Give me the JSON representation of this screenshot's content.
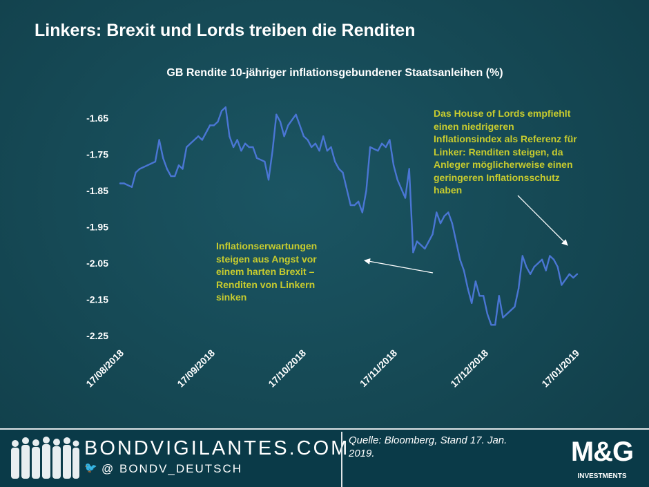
{
  "page": {
    "title": "Linkers: Brexit und Lords treiben die Renditen"
  },
  "chart_data": {
    "type": "line",
    "title": "GB Rendite 10-jähriger inflationsgebundener Staatsanleihen (%)",
    "xlabel": "",
    "ylabel": "",
    "ylim": [
      -2.25,
      -1.65
    ],
    "yticks": [
      "-1.65",
      "-1.75",
      "-1.85",
      "-1.95",
      "-2.05",
      "-2.15",
      "-2.25"
    ],
    "xticks": [
      "17/08/2018",
      "17/09/2018",
      "17/10/2018",
      "17/11/2018",
      "17/12/2018",
      "17/01/2019"
    ],
    "xlim": [
      0,
      117
    ],
    "grid": false,
    "legend": "none",
    "series": [
      {
        "name": "GB Rendite 10-jähriger inflationsgebundener Staatsanleihen",
        "x": [
          0,
          1,
          3,
          4,
          5,
          7,
          9,
          10,
          11,
          12,
          13,
          14,
          15,
          16,
          17,
          18,
          20,
          21,
          22,
          23,
          24,
          25,
          26,
          27,
          28,
          29,
          30,
          31,
          32,
          33,
          34,
          35,
          37,
          38,
          39,
          40,
          41,
          42,
          43,
          45,
          46,
          47,
          48,
          49,
          50,
          51,
          52,
          53,
          54,
          55,
          56,
          57,
          59,
          60,
          61,
          62,
          63,
          64,
          66,
          67,
          68,
          69,
          70,
          71,
          73,
          74,
          75,
          76,
          77,
          78,
          79,
          80,
          81,
          82,
          83,
          84,
          85,
          87,
          88,
          89,
          90,
          91,
          92,
          93,
          94,
          95,
          96,
          97,
          98,
          99,
          101,
          102,
          103,
          104,
          105,
          106,
          108,
          109,
          110,
          111,
          112,
          113,
          115,
          116,
          117
        ],
        "values": [
          -1.83,
          -1.83,
          -1.84,
          -1.8,
          -1.79,
          -1.78,
          -1.77,
          -1.71,
          -1.76,
          -1.79,
          -1.81,
          -1.81,
          -1.78,
          -1.79,
          -1.73,
          -1.72,
          -1.7,
          -1.71,
          -1.69,
          -1.67,
          -1.67,
          -1.66,
          -1.63,
          -1.62,
          -1.7,
          -1.73,
          -1.71,
          -1.74,
          -1.72,
          -1.73,
          -1.73,
          -1.76,
          -1.77,
          -1.82,
          -1.74,
          -1.64,
          -1.66,
          -1.7,
          -1.67,
          -1.64,
          -1.67,
          -1.7,
          -1.71,
          -1.73,
          -1.72,
          -1.74,
          -1.7,
          -1.74,
          -1.73,
          -1.77,
          -1.79,
          -1.8,
          -1.89,
          -1.89,
          -1.88,
          -1.91,
          -1.85,
          -1.73,
          -1.74,
          -1.72,
          -1.73,
          -1.71,
          -1.78,
          -1.82,
          -1.87,
          -1.79,
          -2.02,
          -1.99,
          -2.0,
          -2.01,
          -1.99,
          -1.97,
          -1.91,
          -1.94,
          -1.92,
          -1.91,
          -1.94,
          -2.04,
          -2.07,
          -2.12,
          -2.16,
          -2.1,
          -2.14,
          -2.14,
          -2.19,
          -2.22,
          -2.22,
          -2.14,
          -2.2,
          -2.19,
          -2.17,
          -2.12,
          -2.03,
          -2.06,
          -2.08,
          -2.06,
          -2.04,
          -2.07,
          -2.03,
          -2.04,
          -2.06,
          -2.11,
          -2.08,
          -2.09,
          -2.08
        ]
      }
    ],
    "annotations": {
      "lords": [
        "Das House of Lords empfiehlt",
        "einen niedrigeren",
        "Inflationsindex als Referenz für",
        "Linker: Renditen steigen, da",
        "Anleger möglicherweise einen",
        "geringeren Inflationsschutz",
        "haben"
      ],
      "brexit": [
        "Inflationserwartungen",
        "steigen aus Angst vor",
        "einem harten Brexit –",
        "Renditen von Linkern",
        "sinken"
      ]
    },
    "line_color": "#4a76d4",
    "annotation_color": "#c8cc2e"
  },
  "footer": {
    "brand": "BONDVIGILANTES.COM",
    "handle": "@ BONDV_DEUTSCH",
    "source": "Quelle: Bloomberg, Stand 17. Jan. 2019.",
    "logo_main": "M&G",
    "logo_sub": "INVESTMENTS"
  }
}
